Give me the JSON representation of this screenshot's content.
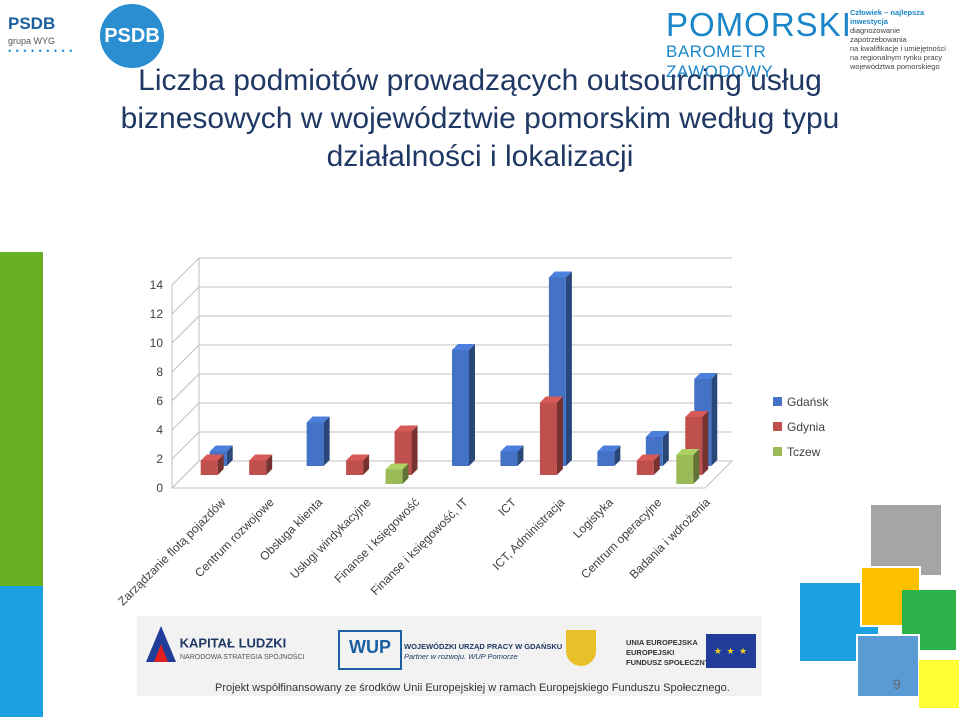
{
  "header": {
    "psdb_logo": {
      "name": "PSDB",
      "sub": "grupa WYG",
      "circle": "PSDB"
    },
    "pomorski_logo": {
      "name": "POMORSKI",
      "sub": "BAROMETR ZAWODOWY",
      "tagline": "Człowiek – najlepsza inwestycja",
      "lines": [
        "diagnozowanie zapotrzebowania",
        "na kwalifikacje i umiejętności",
        "na regionalnym rynku pracy",
        "województwa pomorskiego"
      ]
    }
  },
  "slide": {
    "title_lines": [
      "Liczba podmiotów prowadzących outsourcing usług",
      "biznesowych w województwie pomorskim według typu",
      "działalności i lokalizacji"
    ],
    "page_number": "9"
  },
  "chart_data": {
    "type": "bar",
    "three_d": true,
    "categories": [
      "Zarządzanie flotą pojazdów",
      "Centrum rozwojowe",
      "Obsługa klienta",
      "Usługi windykacyjne",
      "Finanse i księgowość",
      "Finanse i księgowość, IT",
      "ICT",
      "ICT, Administracja",
      "Logistyka",
      "Centrum operacyjne",
      "Badania i wdrożenia"
    ],
    "series": [
      {
        "name": "Gdańsk",
        "color": "#4472c4",
        "values": [
          1,
          0,
          3,
          0,
          0,
          8,
          1,
          13,
          1,
          2,
          6
        ]
      },
      {
        "name": "Gdynia",
        "color": "#c0504d",
        "values": [
          1,
          1,
          0,
          1,
          3,
          0,
          0,
          5,
          0,
          1,
          4
        ]
      },
      {
        "name": "Tczew",
        "color": "#9bbb59",
        "values": [
          0,
          0,
          0,
          0,
          1,
          0,
          0,
          0,
          0,
          0,
          2
        ]
      }
    ],
    "ylim": [
      0,
      14
    ],
    "yticks": [
      "0",
      "2",
      "4",
      "6",
      "8",
      "10",
      "12",
      "14"
    ],
    "grid": true,
    "legend": "right"
  },
  "footer": {
    "kapital_ludzki": "KAPITAŁ LUDZKI",
    "kapital_sub": "NARODOWA STRATEGIA SPÓJNOŚCI",
    "wup": "WUP",
    "wup_name": "WOJEWÓDZKI URZĄD PRACY W GDAŃSKU",
    "wup_tag": "Partner w rozwoju. WUP Pomorze",
    "ue_lines": [
      "UNIA EUROPEJSKA",
      "EUROPEJSKI",
      "FUNDUSZ SPOŁECZNY"
    ],
    "text": "Projekt współfinansowany ze środków Unii Europejskiej w ramach Europejskiego Funduszu Społecznego."
  },
  "decor_colors": {
    "green": "#6ab023",
    "blue": "#1ba1e2",
    "gray": "#a5a5a5",
    "yellow": "#ffc000",
    "lime": "#92d050",
    "steel": "#5b9bd5"
  }
}
